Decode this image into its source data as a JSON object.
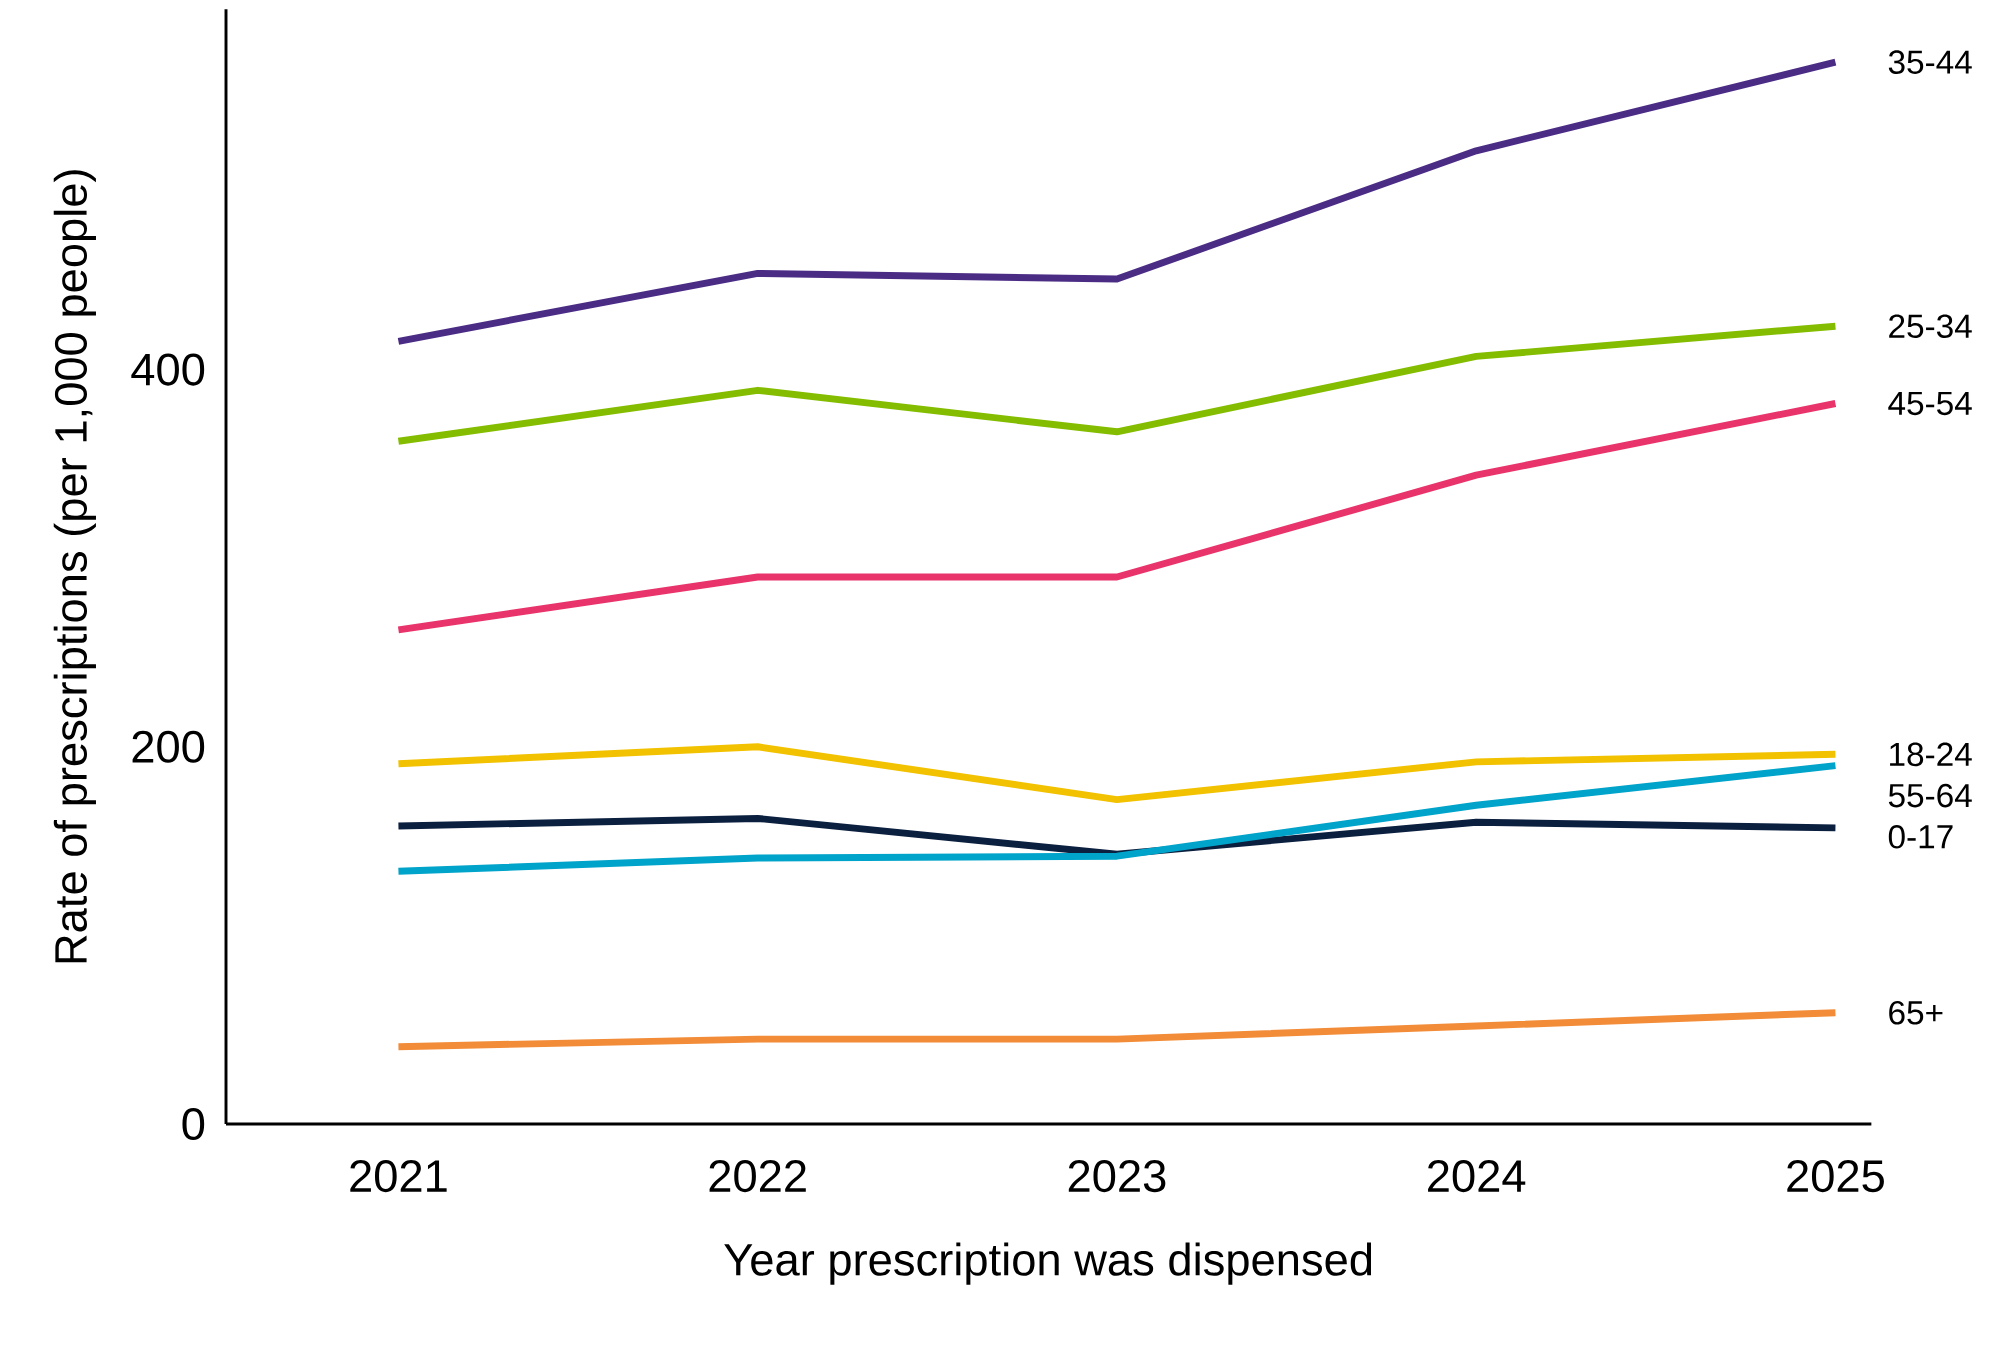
{
  "chart_data": {
    "type": "line",
    "xlabel": "Year prescription was dispensed",
    "ylabel": "Rate of prescriptions (per 1,000 people)",
    "x": [
      2021,
      2022,
      2023,
      2024,
      2025
    ],
    "xlim": [
      2020.52,
      2025.1
    ],
    "xticks": [
      2021,
      2022,
      2023,
      2024,
      2025
    ],
    "ylim": [
      0,
      591
    ],
    "yticks": [
      0,
      200,
      400
    ],
    "grid": false,
    "legend": false,
    "marker": "none",
    "line_style": "solid",
    "series": [
      {
        "name": "35-44",
        "color": "#4b2c85",
        "values": [
          415,
          451,
          448,
          516,
          563
        ]
      },
      {
        "name": "25-34",
        "color": "#84bd00",
        "values": [
          362,
          389,
          367,
          407,
          423
        ]
      },
      {
        "name": "45-54",
        "color": "#e8336b",
        "values": [
          262,
          290,
          290,
          344,
          382
        ]
      },
      {
        "name": "18-24",
        "color": "#f2c200",
        "values": [
          191,
          200,
          172,
          192,
          196
        ]
      },
      {
        "name": "0-17",
        "color": "#0b1f3f",
        "values": [
          158,
          162,
          143,
          160,
          157
        ]
      },
      {
        "name": "55-64",
        "color": "#00a3c9",
        "values": [
          134,
          141,
          142,
          169,
          190
        ]
      },
      {
        "name": "65+",
        "color": "#f28c38",
        "values": [
          41,
          45,
          45,
          52,
          59
        ]
      }
    ]
  }
}
